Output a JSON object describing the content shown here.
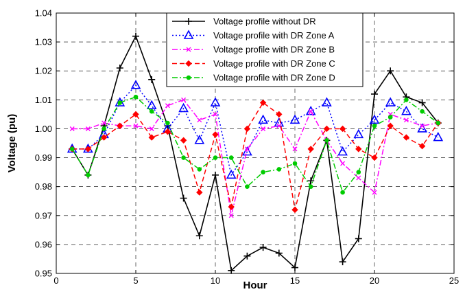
{
  "chart_data": {
    "type": "line",
    "title": "",
    "xlabel": "Hour",
    "ylabel": "Voltage (pu)",
    "xlim": [
      0,
      25
    ],
    "ylim": [
      0.95,
      1.04
    ],
    "xticks": [
      "0",
      "5",
      "10",
      "15",
      "20",
      "25"
    ],
    "yticks": [
      "0.95",
      "0.96",
      "0.97",
      "0.98",
      "0.99",
      "1.00",
      "1.01",
      "1.02",
      "1.03",
      "1.04"
    ],
    "grid": "dashed",
    "legend_position": "top-right",
    "x": [
      1,
      2,
      3,
      4,
      5,
      6,
      7,
      8,
      9,
      10,
      11,
      12,
      13,
      14,
      15,
      16,
      17,
      18,
      19,
      20,
      21,
      22,
      23,
      24
    ],
    "series": [
      {
        "name": "Voltage profile without DR",
        "color": "#000000",
        "dash": "solid",
        "marker": "plus",
        "values": [
          0.993,
          0.984,
          1.001,
          1.021,
          1.032,
          1.017,
          1.001,
          0.976,
          0.963,
          0.984,
          0.951,
          0.956,
          0.959,
          0.957,
          0.952,
          0.982,
          0.996,
          0.954,
          0.962,
          1.012,
          1.02,
          1.011,
          1.009,
          1.002
        ]
      },
      {
        "name": "Voltage profile with DR Zone A",
        "color": "#0000ff",
        "dash": "dotted",
        "marker": "triangle",
        "values": [
          0.993,
          0.993,
          0.998,
          1.009,
          1.015,
          1.008,
          1.0,
          1.007,
          0.996,
          1.009,
          0.984,
          0.992,
          1.003,
          1.002,
          1.003,
          1.006,
          1.009,
          0.992,
          0.998,
          1.003,
          1.009,
          1.006,
          1.0,
          0.997
        ]
      },
      {
        "name": "Voltage profile with DR Zone B",
        "color": "#ff00ff",
        "dash": "dashdot",
        "marker": "x",
        "values": [
          1.0,
          1.0,
          1.002,
          1.001,
          1.001,
          1.0,
          1.008,
          1.01,
          1.003,
          1.005,
          0.97,
          0.993,
          1.0,
          1.001,
          0.993,
          1.006,
          0.996,
          0.988,
          0.983,
          0.978,
          1.005,
          1.003,
          1.001,
          1.002
        ]
      },
      {
        "name": "Voltage profile with DR Zone C",
        "color": "#ff0000",
        "dash": "dashed",
        "marker": "diamond",
        "values": [
          0.993,
          0.993,
          0.997,
          1.001,
          1.005,
          0.997,
          0.999,
          0.996,
          0.978,
          0.998,
          0.973,
          1.0,
          1.009,
          1.005,
          0.972,
          0.993,
          1.0,
          1.0,
          0.993,
          0.99,
          1.001,
          0.997,
          0.994,
          1.002
        ]
      },
      {
        "name": "Voltage profile with DR Zone D",
        "color": "#00cc00",
        "dash": "dashdot",
        "marker": "dot",
        "values": [
          0.993,
          0.984,
          1.0,
          1.009,
          1.011,
          1.006,
          1.002,
          0.99,
          0.986,
          0.99,
          0.99,
          0.98,
          0.985,
          0.986,
          0.988,
          0.98,
          0.996,
          0.978,
          0.985,
          1.001,
          1.004,
          1.01,
          1.006,
          1.002
        ]
      }
    ]
  }
}
